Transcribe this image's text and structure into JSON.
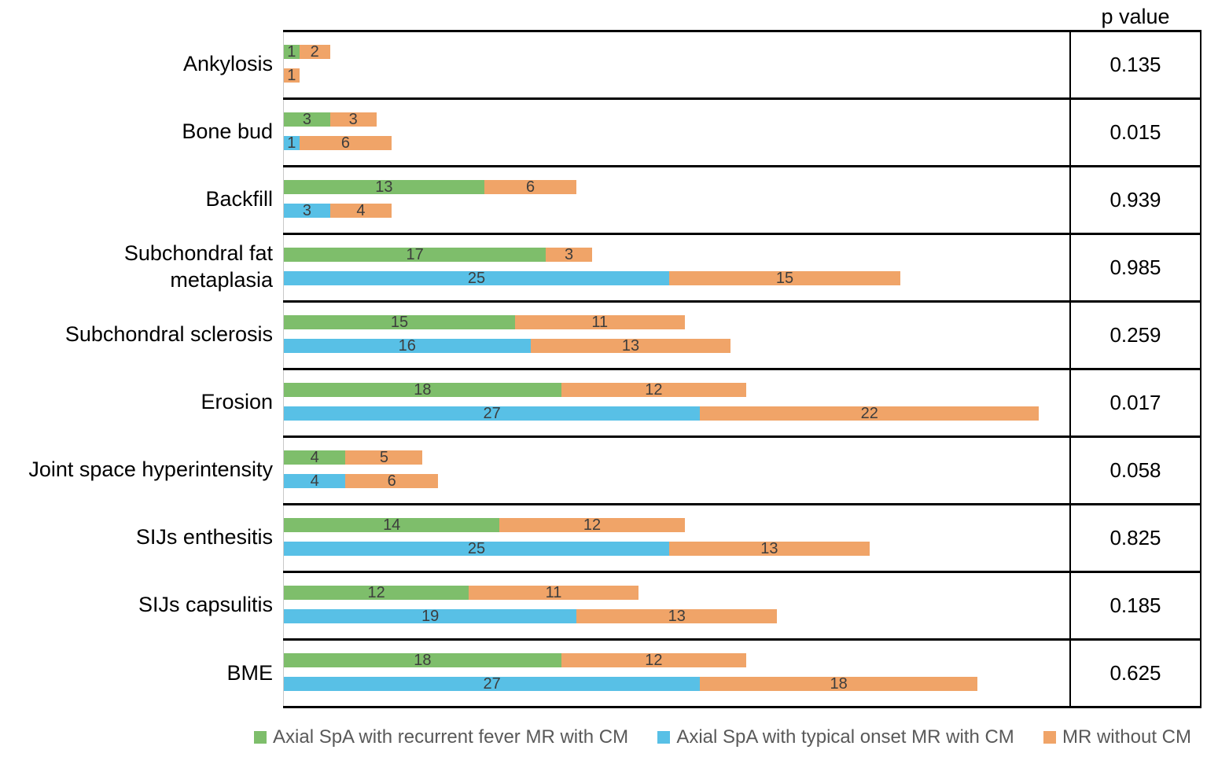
{
  "header": {
    "p_value_column_label": "p value"
  },
  "chart_data": {
    "type": "bar",
    "orientation": "horizontal",
    "stacked": true,
    "title": "",
    "xlabel": "",
    "ylabel": "",
    "x_axis": {
      "min": 0,
      "max": 51,
      "ticks_visible": false,
      "grid": false
    },
    "legend_position": "bottom",
    "categories": [
      "Ankylosis",
      "Bone bud",
      "Backfill",
      "Subchondral fat metaplasia",
      "Subchondral sclerosis",
      "Erosion",
      "Joint space hyperintensity",
      "SIJs enthesitis",
      "SIJs capsulitis",
      "BME"
    ],
    "series": [
      {
        "key": "recurrent_fever_cm",
        "label": "Axial SpA with recurrent fever MR with CM",
        "color": "#7ebe6b"
      },
      {
        "key": "typical_onset_cm",
        "label": "Axial SpA with typical onset MR with CM",
        "color": "#58c0e6"
      },
      {
        "key": "without_cm",
        "label": "MR without CM",
        "color": "#f0a468"
      }
    ],
    "rows": [
      {
        "category": "Ankylosis",
        "label_lines": [
          "Ankylosis"
        ],
        "p_value": "0.135",
        "bars": [
          {
            "segments": [
              {
                "series": "recurrent_fever_cm",
                "value": 1
              },
              {
                "series": "without_cm",
                "value": 2
              }
            ]
          },
          {
            "segments": [
              {
                "series": "without_cm",
                "value": 1
              }
            ]
          }
        ]
      },
      {
        "category": "Bone bud",
        "label_lines": [
          "Bone bud"
        ],
        "p_value": "0.015",
        "bars": [
          {
            "segments": [
              {
                "series": "recurrent_fever_cm",
                "value": 3
              },
              {
                "series": "without_cm",
                "value": 3
              }
            ]
          },
          {
            "segments": [
              {
                "series": "typical_onset_cm",
                "value": 1
              },
              {
                "series": "without_cm",
                "value": 6
              }
            ]
          }
        ]
      },
      {
        "category": "Backfill",
        "label_lines": [
          "Backfill"
        ],
        "p_value": "0.939",
        "bars": [
          {
            "segments": [
              {
                "series": "recurrent_fever_cm",
                "value": 13
              },
              {
                "series": "without_cm",
                "value": 6
              }
            ]
          },
          {
            "segments": [
              {
                "series": "typical_onset_cm",
                "value": 3
              },
              {
                "series": "without_cm",
                "value": 4
              }
            ]
          }
        ]
      },
      {
        "category": "Subchondral fat metaplasia",
        "label_lines": [
          "Subchondral fat",
          "metaplasia"
        ],
        "p_value": "0.985",
        "bars": [
          {
            "segments": [
              {
                "series": "recurrent_fever_cm",
                "value": 17
              },
              {
                "series": "without_cm",
                "value": 3
              }
            ]
          },
          {
            "segments": [
              {
                "series": "typical_onset_cm",
                "value": 25
              },
              {
                "series": "without_cm",
                "value": 15
              }
            ]
          }
        ]
      },
      {
        "category": "Subchondral sclerosis",
        "label_lines": [
          "Subchondral sclerosis"
        ],
        "p_value": "0.259",
        "bars": [
          {
            "segments": [
              {
                "series": "recurrent_fever_cm",
                "value": 15
              },
              {
                "series": "without_cm",
                "value": 11
              }
            ]
          },
          {
            "segments": [
              {
                "series": "typical_onset_cm",
                "value": 16
              },
              {
                "series": "without_cm",
                "value": 13
              }
            ]
          }
        ]
      },
      {
        "category": "Erosion",
        "label_lines": [
          "Erosion"
        ],
        "p_value": "0.017",
        "bars": [
          {
            "segments": [
              {
                "series": "recurrent_fever_cm",
                "value": 18
              },
              {
                "series": "without_cm",
                "value": 12
              }
            ]
          },
          {
            "segments": [
              {
                "series": "typical_onset_cm",
                "value": 27
              },
              {
                "series": "without_cm",
                "value": 22
              }
            ]
          }
        ]
      },
      {
        "category": "Joint space hyperintensity",
        "label_lines": [
          "Joint space hyperintensity"
        ],
        "p_value": "0.058",
        "bars": [
          {
            "segments": [
              {
                "series": "recurrent_fever_cm",
                "value": 4
              },
              {
                "series": "without_cm",
                "value": 5
              }
            ]
          },
          {
            "segments": [
              {
                "series": "typical_onset_cm",
                "value": 4
              },
              {
                "series": "without_cm",
                "value": 6
              }
            ]
          }
        ]
      },
      {
        "category": "SIJs enthesitis",
        "label_lines": [
          "SIJs enthesitis"
        ],
        "p_value": "0.825",
        "bars": [
          {
            "segments": [
              {
                "series": "recurrent_fever_cm",
                "value": 14
              },
              {
                "series": "without_cm",
                "value": 12
              }
            ]
          },
          {
            "segments": [
              {
                "series": "typical_onset_cm",
                "value": 25
              },
              {
                "series": "without_cm",
                "value": 13
              }
            ]
          }
        ]
      },
      {
        "category": "SIJs capsulitis",
        "label_lines": [
          "SIJs capsulitis"
        ],
        "p_value": "0.185",
        "bars": [
          {
            "segments": [
              {
                "series": "recurrent_fever_cm",
                "value": 12
              },
              {
                "series": "without_cm",
                "value": 11
              }
            ]
          },
          {
            "segments": [
              {
                "series": "typical_onset_cm",
                "value": 19
              },
              {
                "series": "without_cm",
                "value": 13
              }
            ]
          }
        ]
      },
      {
        "category": "BME",
        "label_lines": [
          "BME"
        ],
        "p_value": "0.625",
        "bars": [
          {
            "segments": [
              {
                "series": "recurrent_fever_cm",
                "value": 18
              },
              {
                "series": "without_cm",
                "value": 12
              }
            ]
          },
          {
            "segments": [
              {
                "series": "typical_onset_cm",
                "value": 27
              },
              {
                "series": "without_cm",
                "value": 18
              }
            ]
          }
        ]
      }
    ]
  }
}
